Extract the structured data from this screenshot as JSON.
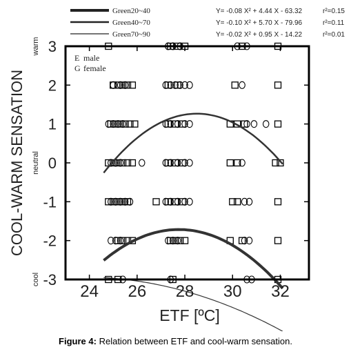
{
  "caption": {
    "label": "Figure 4:",
    "text": "Relation between ETF and cool-warm sensation."
  },
  "chart_data": {
    "type": "scatter",
    "xlabel": "ETF [ºC]",
    "ylabel": "COOL-WARM SENSATION",
    "xlim": [
      23,
      33.2
    ],
    "ylim": [
      -3,
      3
    ],
    "xticks": [
      24,
      26,
      28,
      30,
      32
    ],
    "yticks": [
      3,
      2,
      1,
      0,
      -1,
      -2,
      -3
    ],
    "y_side_labels": {
      "top": "warm",
      "middle": "neutral",
      "bottom": "cool"
    },
    "grid": false,
    "marker_legend": [
      {
        "symbol": "E",
        "label": "male"
      },
      {
        "symbol": "G",
        "label": "female"
      }
    ],
    "series": [
      {
        "name": "Green20~40",
        "a": -0.08,
        "b": 4.44,
        "c": -63.32,
        "equation": "Y= -0.08 X² + 4.44 X - 63.32",
        "r2": "r²=0.15",
        "x_range": [
          24.6,
          32.1
        ],
        "line_width": 4
      },
      {
        "name": "Green40~70",
        "a": -0.1,
        "b": 5.7,
        "c": -79.96,
        "equation": "Y= -0.10 X² + 5.70 X - 79.96",
        "r2": "r²=0.11",
        "x_range": [
          24.6,
          32.1
        ],
        "line_width": 2.5
      },
      {
        "name": "Green70~90",
        "a": -0.02,
        "b": 0.95,
        "c": -14.22,
        "equation": "Y= -0.02 X² + 0.95 X - 14.22",
        "r2": "r²=0.01",
        "x_range": [
          24.6,
          32.1
        ],
        "line_width": 1.2
      }
    ],
    "points": [
      {
        "x": 24.8,
        "y": 3,
        "m": "s"
      },
      {
        "x": 27.4,
        "y": 3,
        "m": "s"
      },
      {
        "x": 27.7,
        "y": 3,
        "m": "s"
      },
      {
        "x": 28.0,
        "y": 3,
        "m": "s"
      },
      {
        "x": 30.4,
        "y": 3,
        "m": "s"
      },
      {
        "x": 31.9,
        "y": 3,
        "m": "s"
      },
      {
        "x": 27.3,
        "y": 3,
        "m": "c"
      },
      {
        "x": 27.5,
        "y": 3,
        "m": "c"
      },
      {
        "x": 27.8,
        "y": 3,
        "m": "c"
      },
      {
        "x": 30.2,
        "y": 3,
        "m": "c"
      },
      {
        "x": 30.6,
        "y": 3,
        "m": "c"
      },
      {
        "x": 25.0,
        "y": 2,
        "m": "s"
      },
      {
        "x": 25.2,
        "y": 2,
        "m": "s"
      },
      {
        "x": 25.4,
        "y": 2,
        "m": "s"
      },
      {
        "x": 25.6,
        "y": 2,
        "m": "s"
      },
      {
        "x": 25.8,
        "y": 2,
        "m": "s"
      },
      {
        "x": 27.3,
        "y": 2,
        "m": "s"
      },
      {
        "x": 27.7,
        "y": 2,
        "m": "s"
      },
      {
        "x": 30.1,
        "y": 2,
        "m": "s"
      },
      {
        "x": 31.9,
        "y": 2,
        "m": "s"
      },
      {
        "x": 25.0,
        "y": 2,
        "m": "c"
      },
      {
        "x": 25.3,
        "y": 2,
        "m": "c"
      },
      {
        "x": 25.5,
        "y": 2,
        "m": "c"
      },
      {
        "x": 27.2,
        "y": 2,
        "m": "c"
      },
      {
        "x": 27.4,
        "y": 2,
        "m": "c"
      },
      {
        "x": 27.6,
        "y": 2,
        "m": "c"
      },
      {
        "x": 27.8,
        "y": 2,
        "m": "c"
      },
      {
        "x": 28.0,
        "y": 2,
        "m": "c"
      },
      {
        "x": 28.2,
        "y": 2,
        "m": "c"
      },
      {
        "x": 30.4,
        "y": 2,
        "m": "c"
      },
      {
        "x": 24.9,
        "y": 1,
        "m": "s"
      },
      {
        "x": 25.1,
        "y": 1,
        "m": "s"
      },
      {
        "x": 25.3,
        "y": 1,
        "m": "s"
      },
      {
        "x": 25.5,
        "y": 1,
        "m": "s"
      },
      {
        "x": 25.7,
        "y": 1,
        "m": "s"
      },
      {
        "x": 25.9,
        "y": 1,
        "m": "s"
      },
      {
        "x": 27.3,
        "y": 1,
        "m": "s"
      },
      {
        "x": 27.6,
        "y": 1,
        "m": "s"
      },
      {
        "x": 27.9,
        "y": 1,
        "m": "s"
      },
      {
        "x": 29.9,
        "y": 1,
        "m": "s"
      },
      {
        "x": 30.2,
        "y": 1,
        "m": "s"
      },
      {
        "x": 30.5,
        "y": 1,
        "m": "s"
      },
      {
        "x": 31.9,
        "y": 1,
        "m": "s"
      },
      {
        "x": 24.8,
        "y": 1,
        "m": "c"
      },
      {
        "x": 25.0,
        "y": 1,
        "m": "c"
      },
      {
        "x": 25.2,
        "y": 1,
        "m": "c"
      },
      {
        "x": 25.4,
        "y": 1,
        "m": "c"
      },
      {
        "x": 27.2,
        "y": 1,
        "m": "c"
      },
      {
        "x": 27.4,
        "y": 1,
        "m": "c"
      },
      {
        "x": 27.7,
        "y": 1,
        "m": "c"
      },
      {
        "x": 28.0,
        "y": 1,
        "m": "c"
      },
      {
        "x": 28.2,
        "y": 1,
        "m": "c"
      },
      {
        "x": 30.6,
        "y": 1,
        "m": "c"
      },
      {
        "x": 30.9,
        "y": 1,
        "m": "c"
      },
      {
        "x": 31.4,
        "y": 1,
        "m": "c"
      },
      {
        "x": 24.8,
        "y": 0,
        "m": "s"
      },
      {
        "x": 25.0,
        "y": 0,
        "m": "s"
      },
      {
        "x": 25.2,
        "y": 0,
        "m": "s"
      },
      {
        "x": 25.4,
        "y": 0,
        "m": "s"
      },
      {
        "x": 25.6,
        "y": 0,
        "m": "s"
      },
      {
        "x": 25.8,
        "y": 0,
        "m": "s"
      },
      {
        "x": 27.3,
        "y": 0,
        "m": "s"
      },
      {
        "x": 27.6,
        "y": 0,
        "m": "s"
      },
      {
        "x": 27.9,
        "y": 0,
        "m": "s"
      },
      {
        "x": 29.9,
        "y": 0,
        "m": "s"
      },
      {
        "x": 30.2,
        "y": 0,
        "m": "s"
      },
      {
        "x": 31.8,
        "y": 0,
        "m": "s"
      },
      {
        "x": 32.0,
        "y": 0,
        "m": "s"
      },
      {
        "x": 24.9,
        "y": 0,
        "m": "c"
      },
      {
        "x": 25.1,
        "y": 0,
        "m": "c"
      },
      {
        "x": 25.3,
        "y": 0,
        "m": "c"
      },
      {
        "x": 26.2,
        "y": 0,
        "m": "c"
      },
      {
        "x": 27.2,
        "y": 0,
        "m": "c"
      },
      {
        "x": 27.4,
        "y": 0,
        "m": "c"
      },
      {
        "x": 27.7,
        "y": 0,
        "m": "c"
      },
      {
        "x": 28.0,
        "y": 0,
        "m": "c"
      },
      {
        "x": 28.2,
        "y": 0,
        "m": "c"
      },
      {
        "x": 30.4,
        "y": 0,
        "m": "c"
      },
      {
        "x": 24.8,
        "y": -1,
        "m": "s"
      },
      {
        "x": 25.0,
        "y": -1,
        "m": "s"
      },
      {
        "x": 25.2,
        "y": -1,
        "m": "s"
      },
      {
        "x": 25.4,
        "y": -1,
        "m": "s"
      },
      {
        "x": 25.6,
        "y": -1,
        "m": "s"
      },
      {
        "x": 26.8,
        "y": -1,
        "m": "s"
      },
      {
        "x": 27.3,
        "y": -1,
        "m": "s"
      },
      {
        "x": 27.6,
        "y": -1,
        "m": "s"
      },
      {
        "x": 27.9,
        "y": -1,
        "m": "s"
      },
      {
        "x": 30.0,
        "y": -1,
        "m": "s"
      },
      {
        "x": 30.2,
        "y": -1,
        "m": "s"
      },
      {
        "x": 31.9,
        "y": -1,
        "m": "s"
      },
      {
        "x": 24.9,
        "y": -1,
        "m": "c"
      },
      {
        "x": 25.1,
        "y": -1,
        "m": "c"
      },
      {
        "x": 25.3,
        "y": -1,
        "m": "c"
      },
      {
        "x": 25.5,
        "y": -1,
        "m": "c"
      },
      {
        "x": 25.7,
        "y": -1,
        "m": "c"
      },
      {
        "x": 27.2,
        "y": -1,
        "m": "c"
      },
      {
        "x": 27.4,
        "y": -1,
        "m": "c"
      },
      {
        "x": 27.7,
        "y": -1,
        "m": "c"
      },
      {
        "x": 28.0,
        "y": -1,
        "m": "c"
      },
      {
        "x": 28.2,
        "y": -1,
        "m": "c"
      },
      {
        "x": 30.5,
        "y": -1,
        "m": "c"
      },
      {
        "x": 30.7,
        "y": -1,
        "m": "c"
      },
      {
        "x": 25.2,
        "y": -2,
        "m": "s"
      },
      {
        "x": 25.4,
        "y": -2,
        "m": "s"
      },
      {
        "x": 25.6,
        "y": -2,
        "m": "s"
      },
      {
        "x": 25.8,
        "y": -2,
        "m": "s"
      },
      {
        "x": 27.4,
        "y": -2,
        "m": "s"
      },
      {
        "x": 27.6,
        "y": -2,
        "m": "s"
      },
      {
        "x": 27.8,
        "y": -2,
        "m": "s"
      },
      {
        "x": 28.0,
        "y": -2,
        "m": "s"
      },
      {
        "x": 29.9,
        "y": -2,
        "m": "s"
      },
      {
        "x": 30.4,
        "y": -2,
        "m": "s"
      },
      {
        "x": 31.9,
        "y": -2,
        "m": "s"
      },
      {
        "x": 24.9,
        "y": -2,
        "m": "c"
      },
      {
        "x": 25.1,
        "y": -2,
        "m": "c"
      },
      {
        "x": 25.3,
        "y": -2,
        "m": "c"
      },
      {
        "x": 27.3,
        "y": -2,
        "m": "c"
      },
      {
        "x": 27.5,
        "y": -2,
        "m": "c"
      },
      {
        "x": 27.7,
        "y": -2,
        "m": "c"
      },
      {
        "x": 30.5,
        "y": -2,
        "m": "c"
      },
      {
        "x": 30.7,
        "y": -2,
        "m": "c"
      },
      {
        "x": 24.8,
        "y": -3,
        "m": "s"
      },
      {
        "x": 25.2,
        "y": -3,
        "m": "s"
      },
      {
        "x": 27.5,
        "y": -3,
        "m": "s"
      },
      {
        "x": 31.9,
        "y": -3,
        "m": "s"
      },
      {
        "x": 25.4,
        "y": -3,
        "m": "c"
      },
      {
        "x": 27.4,
        "y": -3,
        "m": "c"
      },
      {
        "x": 30.6,
        "y": -3,
        "m": "c"
      },
      {
        "x": 30.8,
        "y": -3,
        "m": "c"
      }
    ]
  }
}
